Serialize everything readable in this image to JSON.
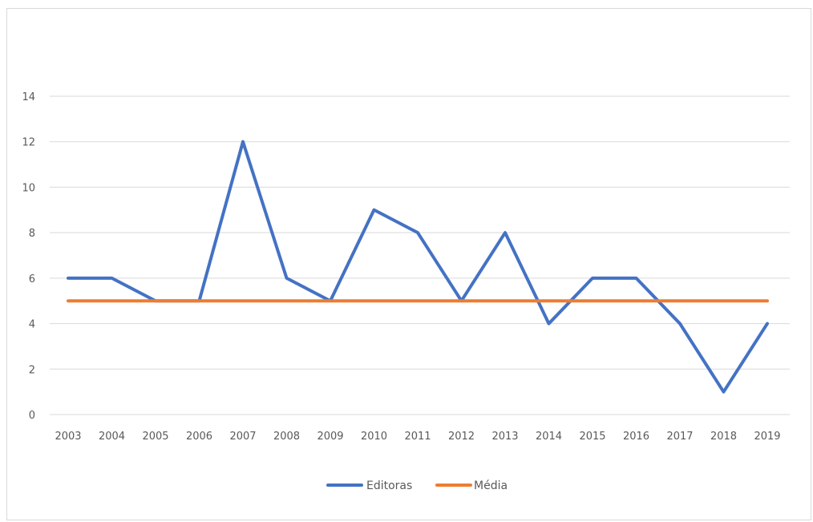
{
  "chart_data": {
    "type": "line",
    "categories": [
      "2003",
      "2004",
      "2005",
      "2006",
      "2007",
      "2008",
      "2009",
      "2010",
      "2011",
      "2012",
      "2013",
      "2014",
      "2015",
      "2016",
      "2017",
      "2018",
      "2019"
    ],
    "series": [
      {
        "name": "Editoras",
        "values": [
          6,
          6,
          5,
          5,
          12,
          6,
          5,
          9,
          8,
          5,
          8,
          4,
          6,
          6,
          4,
          1,
          4
        ],
        "color": "#4472c4"
      },
      {
        "name": "Média",
        "values": [
          5,
          5,
          5,
          5,
          5,
          5,
          5,
          5,
          5,
          5,
          5,
          5,
          5,
          5,
          5,
          5,
          5
        ],
        "color": "#ed7d31"
      }
    ],
    "yticks": [
      "0",
      "2",
      "4",
      "6",
      "8",
      "10",
      "12",
      "14"
    ],
    "ylim": [
      0,
      14
    ],
    "grid": true,
    "legend": "bottom-center",
    "gridline_color": "#d9d9d9",
    "axis_label_color": "#595959"
  }
}
